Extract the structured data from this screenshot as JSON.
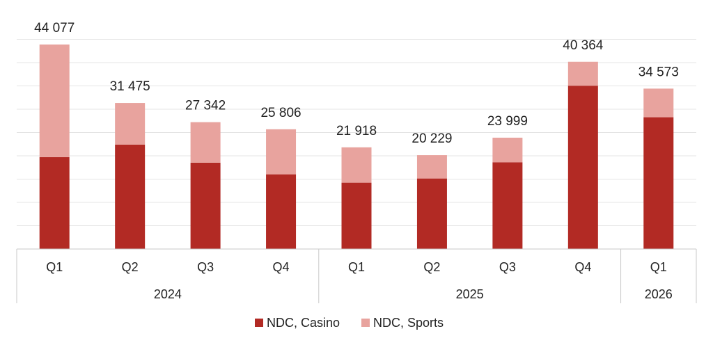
{
  "chart_data": {
    "type": "bar",
    "stacked": true,
    "categories": [
      "Q1",
      "Q2",
      "Q3",
      "Q4",
      "Q1",
      "Q2",
      "Q3",
      "Q4",
      "Q1"
    ],
    "groups": [
      {
        "label": "2024",
        "count": 4
      },
      {
        "label": "2025",
        "count": 4
      },
      {
        "label": "2026",
        "count": 1
      }
    ],
    "totals": [
      "44 077",
      "31 475",
      "27 342",
      "25 806",
      "21 918",
      "20 229",
      "23 999",
      "40 364",
      "34 573"
    ],
    "series": [
      {
        "name": "NDC, Casino",
        "color": "#b22a24",
        "values": [
          19800,
          22500,
          18600,
          16100,
          14300,
          15200,
          18700,
          35200,
          28400
        ]
      },
      {
        "name": "NDC, Sports",
        "color": "#e8a39e",
        "values": [
          24277,
          8975,
          8742,
          9706,
          7618,
          5029,
          5299,
          5164,
          6173
        ]
      }
    ],
    "ylim": [
      0,
      44077
    ],
    "grid": true,
    "legend_position": "bottom-center",
    "xlabel": "",
    "ylabel": ""
  }
}
